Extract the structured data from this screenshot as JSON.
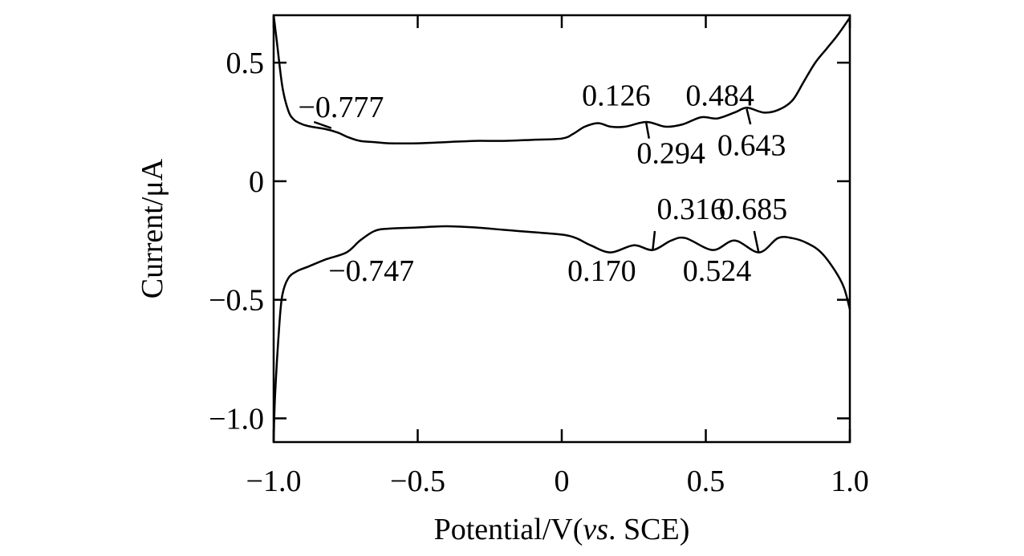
{
  "chart_data": {
    "type": "line",
    "title": "",
    "xlabel": "Potential/V(",
    "xlabel_italic": "vs",
    "xlabel_suffix": ". SCE)",
    "ylabel": "Current/μA",
    "xlim": [
      -1.0,
      1.0
    ],
    "ylim": [
      -1.1,
      0.7
    ],
    "grid": false,
    "x_ticks": [
      -1.0,
      -0.5,
      0,
      0.5,
      1.0
    ],
    "x_tick_labels": [
      "−1.0",
      "−0.5",
      "0",
      "0.5",
      "1.0"
    ],
    "y_ticks": [
      0.5,
      0,
      -0.5,
      -1.0
    ],
    "y_tick_labels": [
      "0.5",
      "0",
      "−0.5",
      "−1.0"
    ],
    "series": [
      {
        "x": [
          -1.0,
          -0.99,
          -0.97,
          -0.95,
          -0.93,
          -0.9,
          -0.87,
          -0.82,
          -0.777,
          -0.74,
          -0.7,
          -0.65,
          -0.6,
          -0.5,
          -0.4,
          -0.3,
          -0.2,
          -0.1,
          0.0,
          0.04,
          0.08,
          0.126,
          0.17,
          0.22,
          0.294,
          0.36,
          0.42,
          0.484,
          0.54,
          0.6,
          0.643,
          0.7,
          0.75,
          0.8,
          0.84,
          0.88,
          0.92,
          0.96,
          1.0
        ],
        "y": [
          0.7,
          0.6,
          0.4,
          0.3,
          0.26,
          0.24,
          0.23,
          0.22,
          0.205,
          0.185,
          0.17,
          0.165,
          0.16,
          0.16,
          0.165,
          0.17,
          0.17,
          0.175,
          0.18,
          0.2,
          0.23,
          0.245,
          0.23,
          0.23,
          0.25,
          0.23,
          0.24,
          0.27,
          0.265,
          0.29,
          0.31,
          0.29,
          0.3,
          0.34,
          0.42,
          0.5,
          0.56,
          0.62,
          0.69
        ]
      },
      {
        "x": [
          -1.0,
          -0.995,
          -0.98,
          -0.97,
          -0.95,
          -0.92,
          -0.88,
          -0.82,
          -0.747,
          -0.7,
          -0.65,
          -0.6,
          -0.5,
          -0.4,
          -0.3,
          -0.2,
          -0.1,
          0.0,
          0.05,
          0.1,
          0.17,
          0.25,
          0.316,
          0.38,
          0.43,
          0.524,
          0.6,
          0.685,
          0.75,
          0.8,
          0.85,
          0.9,
          0.95,
          0.98,
          1.0
        ],
        "y": [
          -1.1,
          -0.9,
          -0.6,
          -0.48,
          -0.41,
          -0.38,
          -0.36,
          -0.33,
          -0.3,
          -0.25,
          -0.21,
          -0.2,
          -0.195,
          -0.19,
          -0.195,
          -0.205,
          -0.215,
          -0.225,
          -0.24,
          -0.27,
          -0.3,
          -0.27,
          -0.29,
          -0.25,
          -0.24,
          -0.29,
          -0.25,
          -0.3,
          -0.24,
          -0.24,
          -0.26,
          -0.3,
          -0.38,
          -0.45,
          -0.54
        ]
      }
    ],
    "annotations": [
      {
        "text": "−0.777",
        "label_x": -0.915,
        "label_y": 0.27,
        "leader": [
          [
            -0.86,
            0.25
          ],
          [
            -0.8,
            0.224
          ]
        ]
      },
      {
        "text": "0.126",
        "label_x": 0.07,
        "label_y": 0.32,
        "leader": null
      },
      {
        "text": "0.484",
        "label_x": 0.43,
        "label_y": 0.32,
        "leader": null
      },
      {
        "text": "0.294",
        "label_x": 0.26,
        "label_y": 0.075,
        "leader": [
          [
            0.293,
            0.247
          ],
          [
            0.303,
            0.18
          ]
        ]
      },
      {
        "text": "0.643",
        "label_x": 0.54,
        "label_y": 0.11,
        "leader": [
          [
            0.642,
            0.305
          ],
          [
            0.655,
            0.24
          ]
        ]
      },
      {
        "text": "0.316",
        "label_x": 0.33,
        "label_y": -0.16,
        "leader": [
          [
            0.316,
            -0.287
          ],
          [
            0.323,
            -0.21
          ]
        ]
      },
      {
        "text": "0.685",
        "label_x": 0.545,
        "label_y": -0.16,
        "leader": [
          [
            0.683,
            -0.298
          ],
          [
            0.668,
            -0.21
          ]
        ]
      },
      {
        "text": "−0.747",
        "label_x": -0.81,
        "label_y": -0.42,
        "leader": null
      },
      {
        "text": "0.170",
        "label_x": 0.02,
        "label_y": -0.42,
        "leader": null
      },
      {
        "text": "0.524",
        "label_x": 0.42,
        "label_y": -0.42,
        "leader": null
      }
    ]
  }
}
